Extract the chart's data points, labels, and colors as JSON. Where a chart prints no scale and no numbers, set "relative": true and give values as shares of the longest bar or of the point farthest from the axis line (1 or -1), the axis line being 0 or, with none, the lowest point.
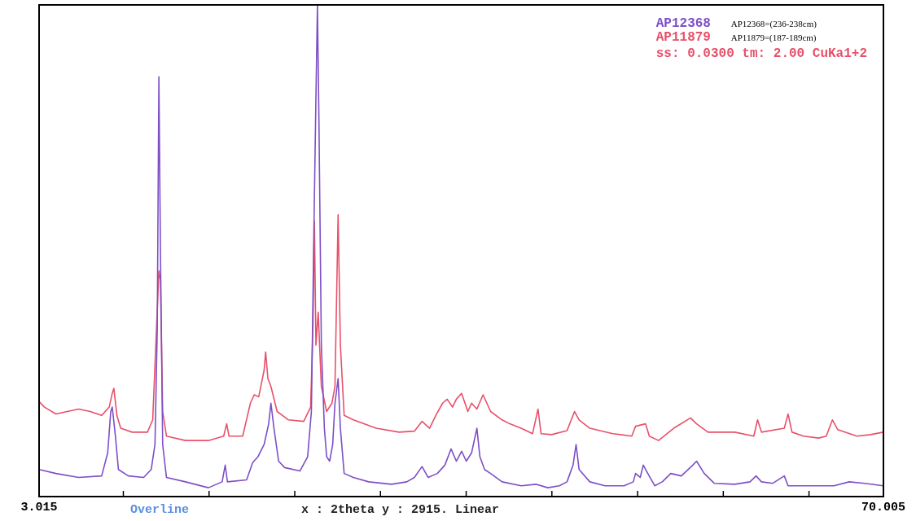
{
  "chart_data": {
    "type": "line",
    "relative": true,
    "xlim": [
      3.015,
      70.005
    ],
    "xticks": [
      {
        "value": 3.015,
        "label": "3.015"
      },
      {
        "value": 9.7,
        "label": null
      },
      {
        "value": 16.5,
        "label": null
      },
      {
        "value": 23.3,
        "label": null
      },
      {
        "value": 30.1,
        "label": null
      },
      {
        "value": 36.9,
        "label": null
      },
      {
        "value": 43.7,
        "label": null
      },
      {
        "value": 50.5,
        "label": null
      },
      {
        "value": 57.3,
        "label": null
      },
      {
        "value": 64.1,
        "label": null
      },
      {
        "value": 70.005,
        "label": "70.005"
      }
    ],
    "tick_labels": "x",
    "grid": false,
    "legend": "top right",
    "marker": "none",
    "line_style": "solid",
    "annotations": [
      "AP12368=(236-238cm)",
      "AP11879=(187-189cm)",
      "ss: 0.0300 tm: 2.00 CuKa1+2",
      "Overline",
      "x : 2theta y : 2915. Linear"
    ],
    "series": [
      {
        "name": "AP12368",
        "color": "#7d4fc6",
        "x": [
          3.02,
          4.35,
          6.16,
          7.98,
          8.46,
          8.7,
          8.82,
          9.07,
          9.31,
          10.1,
          11.31,
          11.91,
          12.21,
          12.39,
          12.52,
          12.64,
          12.82,
          13.12,
          14.63,
          16.45,
          17.54,
          17.78,
          17.96,
          19.48,
          19.96,
          20.38,
          20.87,
          21.23,
          21.41,
          21.65,
          22.02,
          22.5,
          23.71,
          24.32,
          24.62,
          24.8,
          24.98,
          25.1,
          25.22,
          25.41,
          25.65,
          25.83,
          26.07,
          26.31,
          26.49,
          26.74,
          26.92,
          27.22,
          27.95,
          29.16,
          30.97,
          32.19,
          32.79,
          33.4,
          33.88,
          34.61,
          35.21,
          35.7,
          36.12,
          36.54,
          36.91,
          37.33,
          37.75,
          37.99,
          38.36,
          38.84,
          39.75,
          41.26,
          42.47,
          43.38,
          44.29,
          44.9,
          45.38,
          45.62,
          45.86,
          46.71,
          47.92,
          49.43,
          50.16,
          50.34,
          50.71,
          50.95,
          51.31,
          51.86,
          52.46,
          53.13,
          53.97,
          54.88,
          55.18,
          55.79,
          56.58,
          58.21,
          59.42,
          59.9,
          60.33,
          61.23,
          62.14,
          62.44,
          63.05,
          64.87,
          66.08,
          67.29,
          68.5,
          70.0
        ],
        "values": [
          0.055,
          0.047,
          0.039,
          0.042,
          0.089,
          0.173,
          0.182,
          0.123,
          0.055,
          0.042,
          0.039,
          0.055,
          0.106,
          0.341,
          0.854,
          0.509,
          0.106,
          0.039,
          0.03,
          0.018,
          0.03,
          0.064,
          0.03,
          0.034,
          0.069,
          0.081,
          0.106,
          0.148,
          0.19,
          0.139,
          0.072,
          0.059,
          0.052,
          0.081,
          0.173,
          0.509,
          0.812,
          1,
          0.761,
          0.308,
          0.139,
          0.081,
          0.072,
          0.106,
          0.19,
          0.24,
          0.139,
          0.047,
          0.039,
          0.03,
          0.025,
          0.03,
          0.039,
          0.061,
          0.039,
          0.047,
          0.064,
          0.097,
          0.072,
          0.092,
          0.072,
          0.089,
          0.139,
          0.081,
          0.055,
          0.047,
          0.03,
          0.022,
          0.025,
          0.018,
          0.022,
          0.03,
          0.064,
          0.106,
          0.055,
          0.03,
          0.022,
          0.022,
          0.03,
          0.047,
          0.039,
          0.064,
          0.047,
          0.022,
          0.03,
          0.047,
          0.042,
          0.064,
          0.072,
          0.047,
          0.027,
          0.025,
          0.03,
          0.042,
          0.03,
          0.027,
          0.042,
          0.022,
          0.022,
          0.022,
          0.022,
          0.03,
          0.027,
          0.022
        ]
      },
      {
        "name": "AP11879",
        "color": "#e8506a",
        "x": [
          3.02,
          3.44,
          4.35,
          5.25,
          6.16,
          7.07,
          7.98,
          8.58,
          8.82,
          8.95,
          9.19,
          9.49,
          10.4,
          11.61,
          12.03,
          12.33,
          12.52,
          12.64,
          12.82,
          13.12,
          14.63,
          16.45,
          17.66,
          17.9,
          18.08,
          19.17,
          19.78,
          20.08,
          20.44,
          20.87,
          20.99,
          21.17,
          21.41,
          21.9,
          22.8,
          24.01,
          24.56,
          24.74,
          24.86,
          24.98,
          25.16,
          25.41,
          25.83,
          26.25,
          26.49,
          26.74,
          26.92,
          27.22,
          27.95,
          29.76,
          31.58,
          32.79,
          33.4,
          34.0,
          34.49,
          35.03,
          35.39,
          35.82,
          36.12,
          36.54,
          37.03,
          37.33,
          37.75,
          38.24,
          38.84,
          39.75,
          40.36,
          41.26,
          42.17,
          42.6,
          42.84,
          43.68,
          44.9,
          45.5,
          45.86,
          46.71,
          48.53,
          50.04,
          50.34,
          51.13,
          51.43,
          52.16,
          53.37,
          54.7,
          55.18,
          56.09,
          58.21,
          59.72,
          60.02,
          60.33,
          62.14,
          62.44,
          62.75,
          63.66,
          64.87,
          65.47,
          65.96,
          66.38,
          67.89,
          68.98,
          70.0
        ],
        "values": [
          0.193,
          0.182,
          0.168,
          0.173,
          0.178,
          0.173,
          0.165,
          0.182,
          0.21,
          0.22,
          0.165,
          0.139,
          0.131,
          0.131,
          0.156,
          0.341,
          0.459,
          0.442,
          0.173,
          0.123,
          0.114,
          0.114,
          0.123,
          0.148,
          0.123,
          0.123,
          0.19,
          0.207,
          0.203,
          0.257,
          0.294,
          0.24,
          0.224,
          0.173,
          0.156,
          0.153,
          0.182,
          0.341,
          0.56,
          0.308,
          0.375,
          0.224,
          0.173,
          0.19,
          0.224,
          0.573,
          0.308,
          0.165,
          0.156,
          0.139,
          0.131,
          0.133,
          0.153,
          0.139,
          0.165,
          0.19,
          0.198,
          0.182,
          0.198,
          0.21,
          0.173,
          0.19,
          0.178,
          0.207,
          0.173,
          0.156,
          0.148,
          0.139,
          0.128,
          0.178,
          0.128,
          0.126,
          0.134,
          0.173,
          0.156,
          0.139,
          0.128,
          0.123,
          0.143,
          0.148,
          0.123,
          0.114,
          0.139,
          0.16,
          0.148,
          0.131,
          0.131,
          0.123,
          0.156,
          0.131,
          0.139,
          0.168,
          0.131,
          0.123,
          0.119,
          0.123,
          0.156,
          0.136,
          0.123,
          0.126,
          0.131
        ]
      }
    ]
  }
}
